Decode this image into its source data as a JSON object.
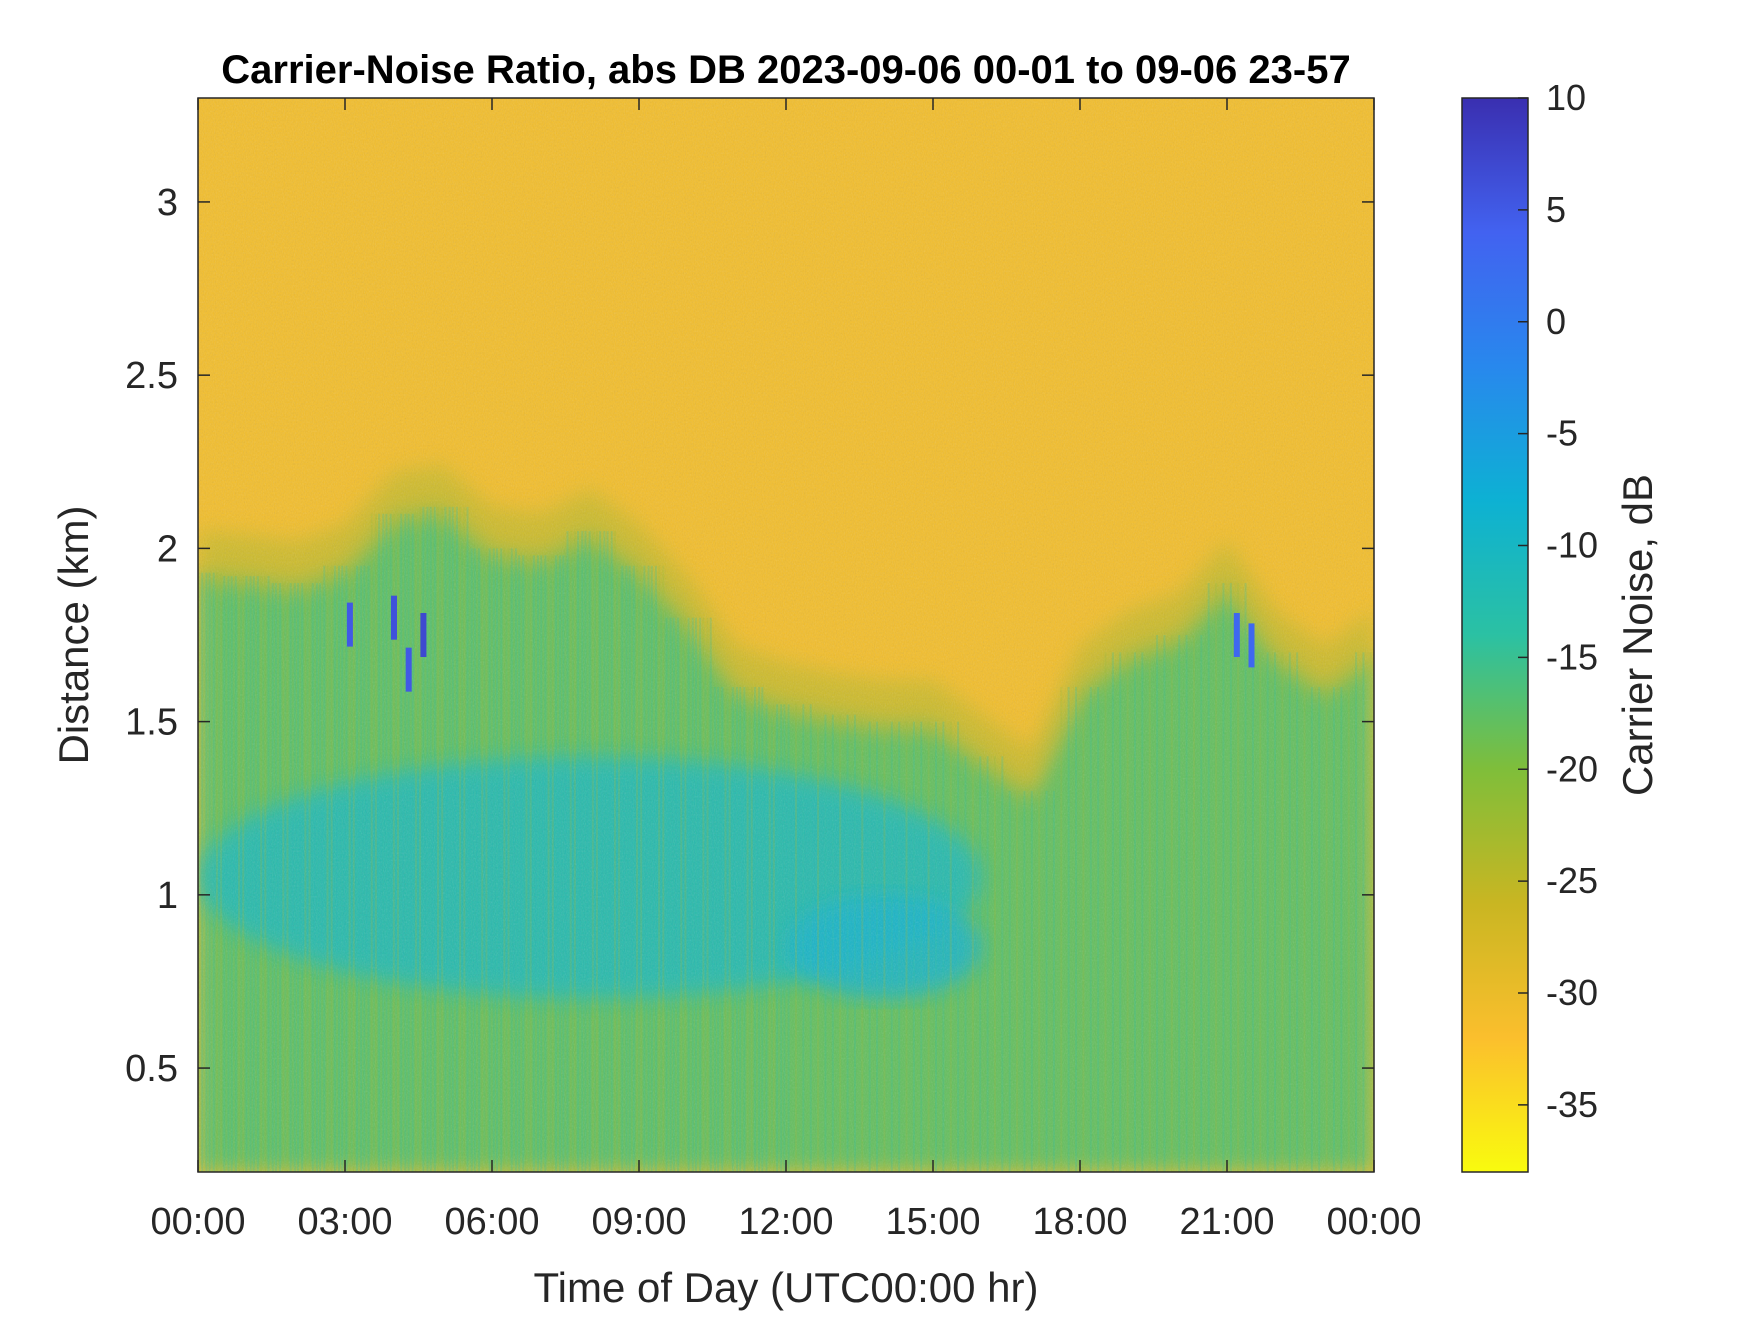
{
  "chart_data": {
    "type": "heatmap",
    "title": "Carrier-Noise Ratio, abs DB 2023-09-06 00-01 to 09-06 23-57",
    "xlabel": "Time of Day (UTC00:00 hr)",
    "ylabel": "Distance (km)",
    "x_unit": "hours",
    "xlim": [
      0,
      24
    ],
    "ylim": [
      0.2,
      3.3
    ],
    "x_ticks": [
      0,
      3,
      6,
      9,
      12,
      15,
      18,
      21,
      24
    ],
    "x_tick_labels": [
      "00:00",
      "03:00",
      "06:00",
      "09:00",
      "12:00",
      "15:00",
      "18:00",
      "21:00",
      "00:00"
    ],
    "y_ticks": [
      0.5,
      1,
      1.5,
      2,
      2.5,
      3
    ],
    "y_tick_labels": [
      "0.5",
      "1",
      "1.5",
      "2",
      "2.5",
      "3"
    ],
    "colorbar": {
      "label": "Carrier Noise, dB",
      "clim": [
        -38,
        10
      ],
      "ticks": [
        10,
        5,
        0,
        -5,
        -10,
        -15,
        -20,
        -25,
        -30,
        -35
      ],
      "tick_labels": [
        "10",
        "5",
        "0",
        "-5",
        "-10",
        "-15",
        "-20",
        "-25",
        "-30",
        "-35"
      ],
      "colormap": "parula_reversed",
      "colors": [
        "#f9fb0e",
        "#fbbf2d",
        "#c9b622",
        "#7fbe3a",
        "#2bc1a3",
        "#0db1d3",
        "#2888ed",
        "#4262f0",
        "#3a2fb0"
      ]
    },
    "signal_boundary_km": {
      "x": [
        0,
        1,
        2,
        3,
        4,
        5,
        6,
        7,
        8,
        9,
        10,
        11,
        12,
        13,
        14,
        15,
        16,
        17,
        18,
        19,
        20,
        21,
        22,
        23,
        24
      ],
      "y": [
        1.93,
        1.92,
        1.9,
        1.95,
        2.1,
        2.12,
        2.0,
        1.98,
        2.05,
        1.95,
        1.8,
        1.6,
        1.55,
        1.52,
        1.5,
        1.5,
        1.4,
        1.3,
        1.6,
        1.7,
        1.75,
        1.9,
        1.7,
        1.6,
        1.7
      ]
    },
    "regions": [
      {
        "name": "background",
        "value_db": -31,
        "distance_km": "above boundary"
      },
      {
        "name": "boundary layer",
        "value_db": -18,
        "distance_km": "0.2-boundary"
      },
      {
        "name": "core",
        "value_db": -11,
        "time_hr": [
          0,
          16
        ],
        "distance_km": [
          0.7,
          1.4
        ]
      },
      {
        "name": "minimum",
        "value_db": -9,
        "time_hr": [
          12,
          16
        ],
        "distance_km": [
          0.7,
          1.0
        ]
      }
    ],
    "high_points": [
      {
        "x": 3.1,
        "y": 1.78,
        "value_db": 5
      },
      {
        "x": 4.0,
        "y": 1.8,
        "value_db": 6
      },
      {
        "x": 4.3,
        "y": 1.65,
        "value_db": 5
      },
      {
        "x": 4.6,
        "y": 1.75,
        "value_db": 7
      },
      {
        "x": 21.2,
        "y": 1.75,
        "value_db": 3
      },
      {
        "x": 21.5,
        "y": 1.72,
        "value_db": 3
      }
    ]
  }
}
